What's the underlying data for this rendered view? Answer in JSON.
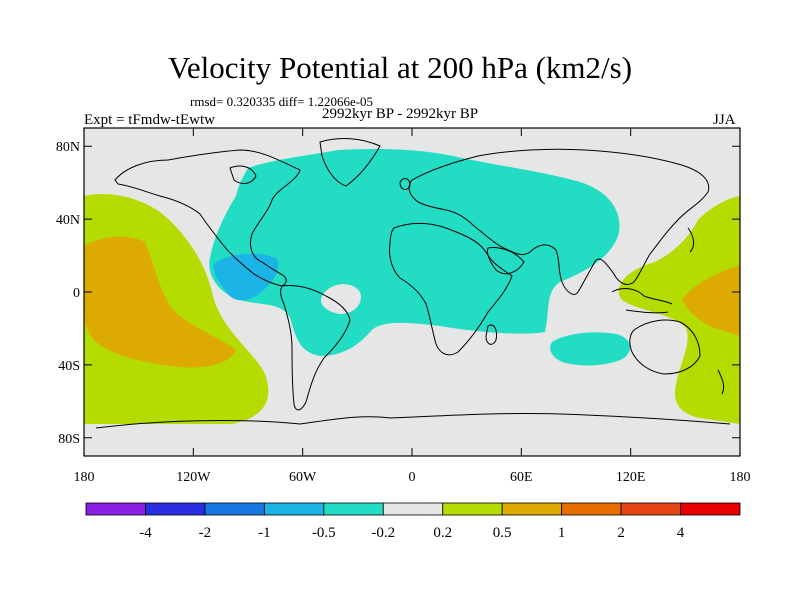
{
  "title": "Velocity Potential at 200 hPa (km2/s)",
  "stats_line": "rmsd= 0.320335 diff= 1.22066e-05",
  "left_label": "Expt = tFmdw-tEwtw",
  "center_label": "2992kyr BP - 2992kyr BP",
  "right_label": "JJA",
  "map": {
    "projection": "cylindrical equidistant",
    "lon_range": [
      -180,
      180
    ],
    "lat_range": [
      -90,
      90
    ],
    "lon_ticks": [
      {
        "value": -180,
        "label": "180"
      },
      {
        "value": -120,
        "label": "120W"
      },
      {
        "value": -60,
        "label": "60W"
      },
      {
        "value": 0,
        "label": "0"
      },
      {
        "value": 60,
        "label": "60E"
      },
      {
        "value": 120,
        "label": "120E"
      },
      {
        "value": 180,
        "label": "180"
      }
    ],
    "lat_ticks": [
      {
        "value": 80,
        "label": "80N"
      },
      {
        "value": 40,
        "label": "40N"
      },
      {
        "value": 0,
        "label": "0"
      },
      {
        "value": -40,
        "label": "40S"
      },
      {
        "value": -80,
        "label": "80S"
      }
    ],
    "background_color": "#e6e6e6"
  },
  "colorbar": {
    "levels": [
      "-4",
      "-2",
      "-1",
      "-0.5",
      "-0.2",
      "0.2",
      "0.5",
      "1",
      "2",
      "4"
    ],
    "colors": [
      "#8a1fe6",
      "#2a2ee0",
      "#1677e0",
      "#1ab5e6",
      "#22ddc4",
      "#e6e6e6",
      "#b4dc00",
      "#dcaa00",
      "#e66e00",
      "#e64614",
      "#e60000"
    ]
  }
}
